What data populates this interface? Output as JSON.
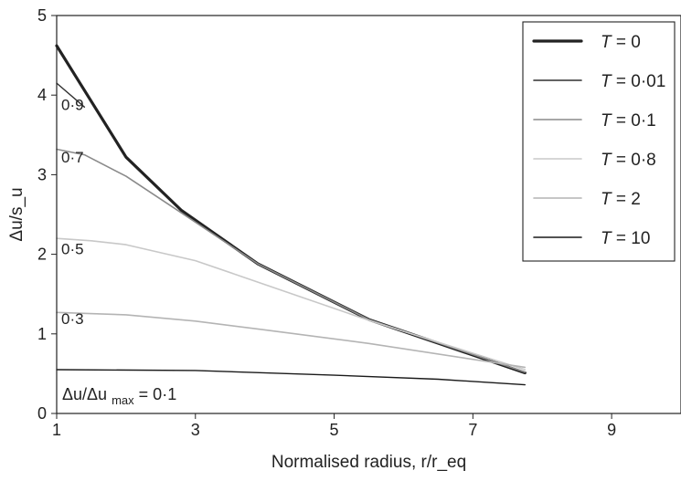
{
  "chart_data": {
    "type": "line",
    "xlabel": "Normalised radius, r/r_eq",
    "ylabel": "Δu/s_u",
    "xlim": [
      1,
      10
    ],
    "ylim": [
      0,
      5
    ],
    "x_ticks": [
      1,
      3,
      5,
      7,
      9
    ],
    "y_ticks": [
      0,
      1,
      2,
      3,
      4,
      5
    ],
    "grid": false,
    "legend_position": "top-right",
    "legend": [
      {
        "label": "T = 0",
        "var": "T",
        "value": "0",
        "color": "#222222"
      },
      {
        "label": "T = 0·01",
        "var": "T",
        "value": "0·01",
        "color": "#303030"
      },
      {
        "label": "T = 0·1",
        "var": "T",
        "value": "0·1",
        "color": "#8a8a8a"
      },
      {
        "label": "T = 0·8",
        "var": "T",
        "value": "0·8",
        "color": "#c8c8c8"
      },
      {
        "label": "T = 2",
        "var": "T",
        "value": "2",
        "color": "#b4b4b4"
      },
      {
        "label": "T = 10",
        "var": "T",
        "value": "10",
        "color": "#1a1a1a"
      }
    ],
    "series": [
      {
        "name": "T = 0",
        "color": "#222222",
        "points": [
          [
            1,
            4.62
          ],
          [
            1.3,
            4.2
          ],
          [
            2,
            3.22
          ],
          [
            2.8,
            2.55
          ],
          [
            3.9,
            1.88
          ],
          [
            5.5,
            1.18
          ],
          [
            7.75,
            0.51
          ]
        ]
      },
      {
        "name": "T = 0·01",
        "color": "#303030",
        "points": [
          [
            1,
            4.15
          ],
          [
            1.4,
            3.85
          ]
        ]
      },
      {
        "name": "T = 0·1",
        "color": "#8a8a8a",
        "points": [
          [
            1,
            3.32
          ],
          [
            1.4,
            3.25
          ],
          [
            2,
            2.98
          ],
          [
            2.8,
            2.52
          ],
          [
            3.9,
            1.88
          ],
          [
            5.5,
            1.18
          ],
          [
            7.75,
            0.52
          ]
        ]
      },
      {
        "name": "T = 0·8",
        "color": "#c8c8c8",
        "points": [
          [
            1,
            2.2
          ],
          [
            1.5,
            2.17
          ],
          [
            2,
            2.12
          ],
          [
            3,
            1.92
          ],
          [
            4,
            1.62
          ],
          [
            5.5,
            1.17
          ],
          [
            7.75,
            0.55
          ]
        ]
      },
      {
        "name": "T = 2",
        "color": "#b4b4b4",
        "points": [
          [
            1,
            1.27
          ],
          [
            2,
            1.24
          ],
          [
            3,
            1.16
          ],
          [
            4,
            1.05
          ],
          [
            5.5,
            0.88
          ],
          [
            7.75,
            0.58
          ]
        ]
      },
      {
        "name": "T = 10",
        "color": "#1a1a1a",
        "points": [
          [
            1,
            0.55
          ],
          [
            3,
            0.54
          ],
          [
            5,
            0.48
          ],
          [
            6.5,
            0.43
          ],
          [
            7.75,
            0.36
          ]
        ]
      }
    ],
    "contour_annotations": [
      {
        "label": "0·9",
        "x": 1.0,
        "y": 3.88
      },
      {
        "label": "0·7",
        "x": 1.0,
        "y": 3.22
      },
      {
        "label": "0·5",
        "x": 1.0,
        "y": 2.07
      },
      {
        "label": "0·3",
        "x": 1.0,
        "y": 1.19
      }
    ],
    "bottom_annotation": {
      "prefix": "Δu/Δu",
      "subscript": "max",
      "suffix": " = 0·1"
    }
  }
}
